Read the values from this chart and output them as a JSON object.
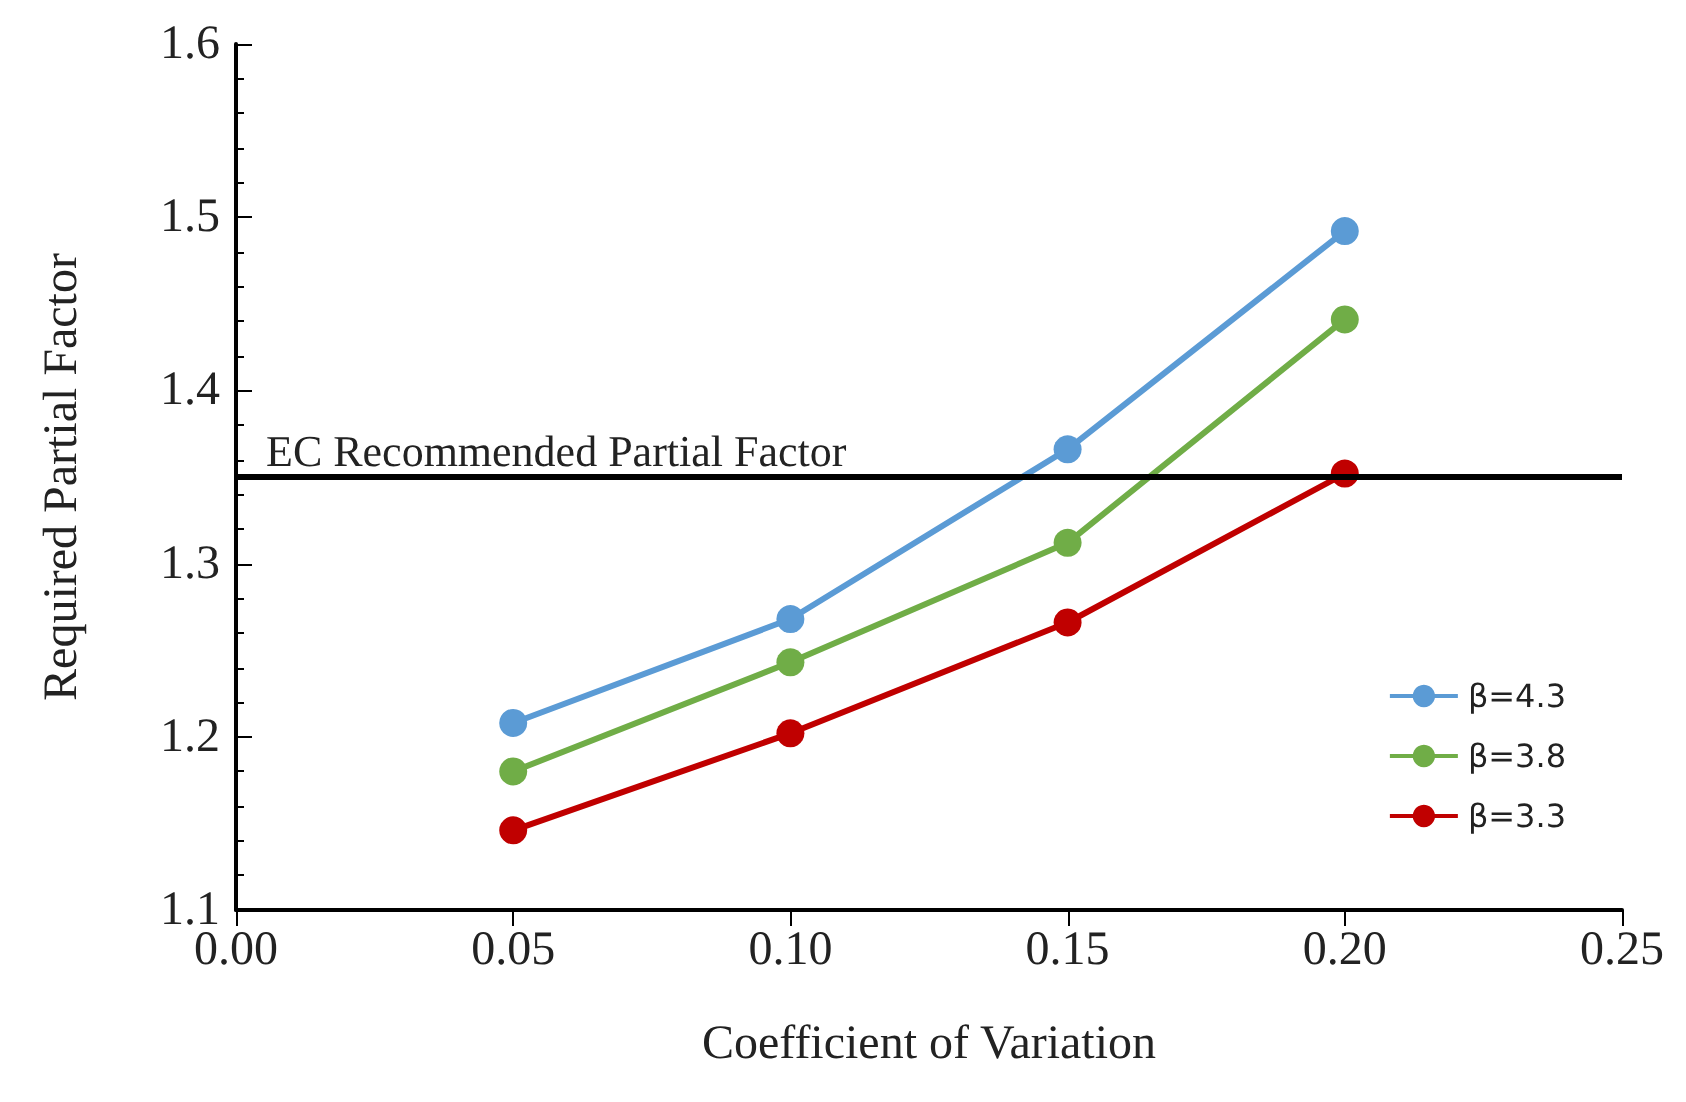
{
  "chart_data": {
    "type": "line",
    "xlabel": "Coefficient of Variation",
    "ylabel": "Required Partial Factor",
    "x": [
      0.05,
      0.1,
      0.15,
      0.2
    ],
    "series": [
      {
        "name": "β=4.3",
        "color": "#5b9bd5",
        "values": [
          1.208,
          1.268,
          1.366,
          1.492
        ]
      },
      {
        "name": "β=3.8",
        "color": "#70ad47",
        "values": [
          1.18,
          1.243,
          1.312,
          1.441
        ]
      },
      {
        "name": "β=3.3",
        "color": "#c00000",
        "values": [
          1.146,
          1.202,
          1.266,
          1.352
        ]
      }
    ],
    "xlim": [
      0,
      0.25
    ],
    "xticks": [
      {
        "value": 0,
        "label": "0.00"
      },
      {
        "value": 0.05,
        "label": "0.05"
      },
      {
        "value": 0.1,
        "label": "0.10"
      },
      {
        "value": 0.15,
        "label": "0.15"
      },
      {
        "value": 0.2,
        "label": "0.20"
      },
      {
        "value": 0.25,
        "label": "0.25"
      }
    ],
    "ylim": [
      1.1,
      1.6
    ],
    "yticks": [
      1.1,
      1.2,
      1.3,
      1.4,
      1.5,
      1.6
    ],
    "ref_lines": [
      {
        "axis": "y",
        "value": 1.35,
        "label": "EC Recommended Partial Factor",
        "color": "#000000"
      }
    ],
    "grid": false,
    "legend": "right",
    "marker": "circle",
    "line_style": "solid"
  }
}
